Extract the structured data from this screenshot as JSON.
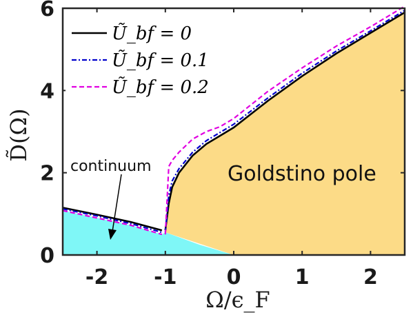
{
  "chart_data": {
    "type": "line",
    "xlabel": "Ω/ϵ_F",
    "ylabel": "D̃(Ω)",
    "xlim": [
      -2.5,
      2.5
    ],
    "ylim": [
      0,
      6
    ],
    "xticks": [
      "-2",
      "-1",
      "0",
      "1",
      "2"
    ],
    "yticks": [
      "0",
      "2",
      "4",
      "6"
    ],
    "grid": false,
    "legend_position": "top-left",
    "series": [
      {
        "name": "Ũ_bf = 0",
        "style": "solid",
        "color": "#000000",
        "left_x": [
          -2.5,
          -2.0,
          -1.5,
          -1.05
        ],
        "left_y": [
          1.15,
          0.98,
          0.8,
          0.6
        ],
        "right_x": [
          -1.0,
          -0.95,
          -0.9,
          -0.8,
          -0.6,
          -0.4,
          -0.2,
          0.0,
          0.5,
          1.0,
          1.5,
          2.0,
          2.5
        ],
        "right_y": [
          0.6,
          1.25,
          1.65,
          2.0,
          2.42,
          2.7,
          2.9,
          3.1,
          3.75,
          4.35,
          4.9,
          5.4,
          5.9
        ]
      },
      {
        "name": "Ũ_bf = 0.1",
        "style": "dashdot",
        "color": "#0000cc",
        "left_x": [
          -2.5,
          -2.0,
          -1.5,
          -1.05
        ],
        "left_y": [
          1.12,
          0.95,
          0.76,
          0.55
        ],
        "right_x": [
          -1.0,
          -0.95,
          -0.9,
          -0.8,
          -0.6,
          -0.4,
          -0.2,
          0.0,
          0.5,
          1.0,
          1.5,
          2.0,
          2.5
        ],
        "right_y": [
          0.55,
          1.45,
          1.8,
          2.1,
          2.5,
          2.78,
          2.98,
          3.18,
          3.82,
          4.42,
          4.96,
          5.45,
          5.95
        ]
      },
      {
        "name": "Ũ_bf = 0.2",
        "style": "dashed",
        "color": "#e100e1",
        "left_x": [
          -2.5,
          -2.0,
          -1.5,
          -1.05
        ],
        "left_y": [
          1.08,
          0.9,
          0.72,
          0.5
        ],
        "right_x": [
          -1.0,
          -0.95,
          -0.9,
          -0.8,
          -0.6,
          -0.4,
          -0.2,
          0.0,
          0.5,
          1.0,
          1.5,
          2.0,
          2.5
        ],
        "right_y": [
          0.5,
          2.15,
          2.3,
          2.5,
          2.82,
          3.0,
          3.12,
          3.32,
          3.98,
          4.55,
          5.08,
          5.55,
          6.05
        ]
      }
    ],
    "regions": [
      {
        "name": "continuum",
        "color": "#7ff7f7"
      },
      {
        "name": "Goldstino pole",
        "color": "#fcdb87"
      }
    ],
    "continuum_boundary": {
      "x": [
        -2.5,
        -2.0,
        -1.5,
        -1.05,
        -1.0,
        -0.5,
        0.0
      ],
      "y": [
        1.08,
        0.9,
        0.72,
        0.5,
        0.55,
        0.25,
        0.0
      ]
    },
    "annotations": [
      "continuum",
      "Goldstino pole"
    ]
  }
}
